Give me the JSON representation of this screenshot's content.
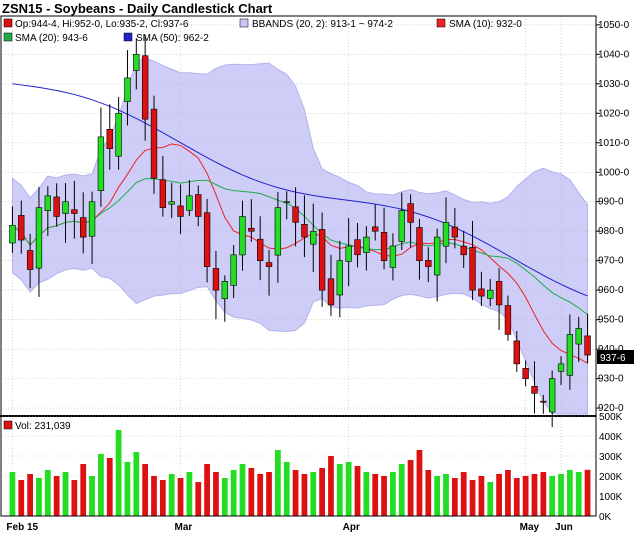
{
  "title": "ZSN15 - Soybeans - Daily Candlestick Chart",
  "legend": {
    "ohlc": "Op:944-4, Hi:952-0, Lo:935-2, Cl:937-6",
    "bbands": "BBANDS (20, 2): 913-1 ~ 974-2",
    "sma10": "SMA (10): 932-0",
    "sma20": "SMA (20): 943-6",
    "sma50": "SMA (50): 962-2",
    "volume": "Vol: 231,039"
  },
  "last_price_label": "937-6",
  "colors": {
    "up": "#22dd22",
    "down": "#dd1111",
    "bband_fill": "#c8c8f8",
    "sma10": "#ee2222",
    "sma20": "#22aa44",
    "sma50": "#2222cc",
    "grid": "#bbbbbb"
  },
  "chart_data": [
    {
      "type": "candlestick",
      "title": "ZSN15 - Soybeans - Daily Candlestick Chart",
      "x_labels": [
        "Feb 15",
        "Mar",
        "Apr",
        "May",
        "Jun"
      ],
      "y_ticks": [
        "920-0",
        "930-0",
        "940-0",
        "950-0",
        "960-0",
        "970-0",
        "980-0",
        "990-0",
        "1000-0",
        "1010-0",
        "1020-0",
        "1030-0",
        "1040-0",
        "1050-0"
      ],
      "ylim": [
        918,
        1053
      ],
      "closes": [
        982,
        977,
        967,
        988,
        992,
        985,
        990,
        986,
        978,
        990,
        1012,
        1008,
        1020,
        1032,
        1040,
        1018,
        998,
        988,
        990,
        985,
        992,
        985,
        968,
        960,
        963,
        972,
        985,
        980,
        970,
        968,
        988,
        990,
        983,
        978,
        980,
        960,
        955,
        970,
        975,
        972,
        978,
        980,
        970,
        975,
        987,
        983,
        970,
        968,
        978,
        983,
        978,
        972,
        960,
        958,
        960,
        955,
        945,
        935,
        930,
        925,
        922,
        930,
        935,
        945,
        947,
        938
      ],
      "volume": {
        "label": "Vol",
        "ylim": [
          0,
          500000
        ],
        "ticks": [
          "0K",
          "100K",
          "200K",
          "300K",
          "400K",
          "500K"
        ],
        "values": [
          220000,
          180000,
          210000,
          190000,
          230000,
          200000,
          220000,
          180000,
          260000,
          200000,
          310000,
          290000,
          430000,
          270000,
          320000,
          260000,
          200000,
          180000,
          210000,
          190000,
          220000,
          170000,
          260000,
          220000,
          190000,
          230000,
          260000,
          240000,
          210000,
          220000,
          330000,
          270000,
          230000,
          210000,
          220000,
          240000,
          300000,
          260000,
          270000,
          250000,
          220000,
          210000,
          200000,
          220000,
          260000,
          280000,
          330000,
          230000,
          200000,
          210000,
          190000,
          220000,
          180000,
          200000,
          170000,
          210000,
          230000,
          190000,
          200000,
          210000,
          220000,
          200000,
          210000,
          230000,
          220000,
          231039
        ]
      }
    }
  ]
}
